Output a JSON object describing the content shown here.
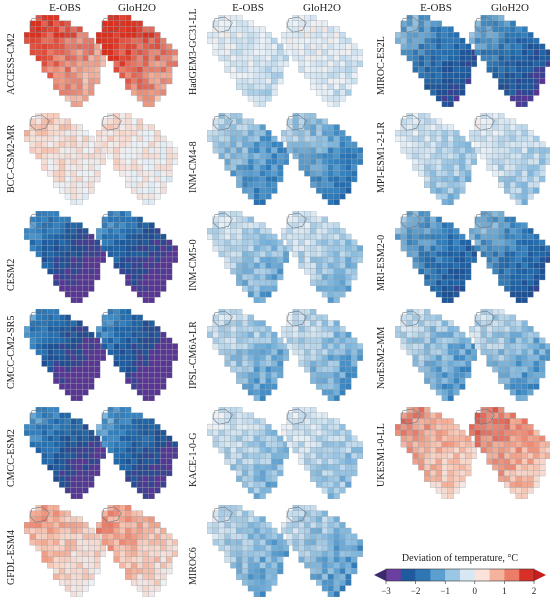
{
  "columns": [
    "E-OBS",
    "GloH2O"
  ],
  "models": [
    {
      "name": "ACCESS-CM2",
      "eobs": 1.3,
      "gloh2o": 1.5,
      "grid": 0
    },
    {
      "name": "BCC-CSM2-MR",
      "eobs": 0.3,
      "gloh2o": 0.2,
      "grid": 0
    },
    {
      "name": "CESM2",
      "eobs": -2.6,
      "gloh2o": -2.6,
      "grid": 0
    },
    {
      "name": "CMCC-CM2-SR5",
      "eobs": -2.7,
      "gloh2o": -2.7,
      "grid": 0
    },
    {
      "name": "CMCC-ESM2",
      "eobs": -2.4,
      "gloh2o": -2.3,
      "grid": 0
    },
    {
      "name": "GFDL-ESM4",
      "eobs": 0.6,
      "gloh2o": 0.7,
      "grid": 0
    },
    {
      "name": "HadGEM3-GC31-LL",
      "eobs": -0.3,
      "gloh2o": -0.2,
      "grid": 1
    },
    {
      "name": "INM-CM4-8",
      "eobs": -1.2,
      "gloh2o": -1.3,
      "grid": 1
    },
    {
      "name": "INM-CM5-0",
      "eobs": -0.8,
      "gloh2o": -0.7,
      "grid": 1
    },
    {
      "name": "IPSL-CM6A-LR",
      "eobs": -0.9,
      "gloh2o": -0.9,
      "grid": 1
    },
    {
      "name": "KACE-1-0-G",
      "eobs": -0.7,
      "gloh2o": -0.6,
      "grid": 1
    },
    {
      "name": "MIROC6",
      "eobs": -0.9,
      "gloh2o": -1.0,
      "grid": 1
    },
    {
      "name": "MIROC-ES2L",
      "eobs": -2.0,
      "gloh2o": -2.1,
      "grid": 2
    },
    {
      "name": "MPI-ESM1-2-LR",
      "eobs": -0.6,
      "gloh2o": -0.5,
      "grid": 2
    },
    {
      "name": "MRI-ESM2-0",
      "eobs": -1.8,
      "gloh2o": -1.8,
      "grid": 2
    },
    {
      "name": "NorESM2-MM",
      "eobs": -1.0,
      "gloh2o": -1.0,
      "grid": 2
    },
    {
      "name": "UKESM1-0-LL",
      "eobs": 0.8,
      "gloh2o": 1.0,
      "grid": 2
    }
  ],
  "chart_data": {
    "type": "heatmap",
    "xlabel": "",
    "ylabel": "",
    "legend": {
      "title": "Deviation of temperature, °C",
      "ticks": [
        "-3",
        "-2",
        "-1",
        "0",
        "1",
        "2"
      ],
      "colors": [
        "#6a3fa0",
        "#1f5a9e",
        "#2f77b4",
        "#5a9fd0",
        "#9cc7e4",
        "#d7e8f3",
        "#fbe3da",
        "#f5b29c",
        "#ec7d68",
        "#d73027"
      ],
      "placement": "bottom-right"
    }
  }
}
